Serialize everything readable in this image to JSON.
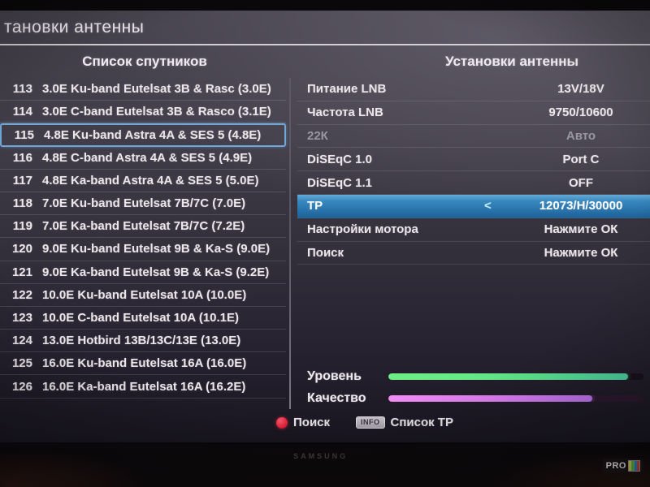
{
  "window": {
    "title": "тановки антенны"
  },
  "satellite_list": {
    "header": "Список спутников",
    "items": [
      {
        "num": "113",
        "label": "3.0E Ku-band Eutelsat 3B & Rasc (3.0E)",
        "selected": false
      },
      {
        "num": "114",
        "label": "3.0E C-band Eutelsat 3B & Rasco (3.1E)",
        "selected": false
      },
      {
        "num": "115",
        "label": "4.8E Ku-band Astra 4A & SES 5 (4.8E)",
        "selected": true
      },
      {
        "num": "116",
        "label": "4.8E C-band Astra 4A & SES 5 (4.9E)",
        "selected": false
      },
      {
        "num": "117",
        "label": "4.8E Ka-band Astra 4A & SES 5 (5.0E)",
        "selected": false
      },
      {
        "num": "118",
        "label": "7.0E Ku-band Eutelsat 7B/7C (7.0E)",
        "selected": false
      },
      {
        "num": "119",
        "label": "7.0E Ka-band Eutelsat 7B/7C (7.2E)",
        "selected": false
      },
      {
        "num": "120",
        "label": "9.0E Ku-band Eutelsat 9B & Ka-S (9.0E)",
        "selected": false
      },
      {
        "num": "121",
        "label": "9.0E Ka-band Eutelsat 9B & Ka-S (9.2E)",
        "selected": false
      },
      {
        "num": "122",
        "label": "10.0E Ku-band Eutelsat 10A (10.0E)",
        "selected": false
      },
      {
        "num": "123",
        "label": "10.0E C-band Eutelsat 10A (10.1E)",
        "selected": false
      },
      {
        "num": "124",
        "label": "13.0E Hotbird 13B/13C/13E (13.0E)",
        "selected": false
      },
      {
        "num": "125",
        "label": "16.0E Ku-band Eutelsat 16A (16.0E)",
        "selected": false
      },
      {
        "num": "126",
        "label": "16.0E Ka-band Eutelsat 16A (16.2E)",
        "selected": false
      }
    ]
  },
  "antenna_settings": {
    "header": "Установки антенны",
    "rows": [
      {
        "label": "Питание LNB",
        "value": "13V/18V",
        "disabled": false,
        "selected": false
      },
      {
        "label": "Частота LNB",
        "value": "9750/10600",
        "disabled": false,
        "selected": false
      },
      {
        "label": "22К",
        "value": "Авто",
        "disabled": true,
        "selected": false
      },
      {
        "label": "DiSEqC 1.0",
        "value": "Port C",
        "disabled": false,
        "selected": false
      },
      {
        "label": "DiSEqC 1.1",
        "value": "OFF",
        "disabled": false,
        "selected": false
      },
      {
        "label": "TP",
        "value": "12073/H/30000",
        "arrow": "<",
        "disabled": false,
        "selected": true
      },
      {
        "label": "Настройки мотора",
        "value": "Нажмите ОК",
        "disabled": false,
        "selected": false
      },
      {
        "label": "Поиск",
        "value": "Нажмите ОК",
        "disabled": false,
        "selected": false
      }
    ]
  },
  "signal": {
    "level_label": "Уровень",
    "quality_label": "Качество",
    "level_percent": 94,
    "quality_percent": 80
  },
  "footer": {
    "search_label": "Поиск",
    "info_badge": "INFO",
    "tp_list_label": "Список ТР"
  },
  "watermark": "PRO",
  "tv_brand": "SAMSUNG",
  "colors": {
    "selection_blue": "#3787bf",
    "selected_border_blue": "#6fa7d8",
    "level_green": "#5fe489",
    "quality_magenta": "#dd7df2",
    "search_red": "#e62540"
  }
}
